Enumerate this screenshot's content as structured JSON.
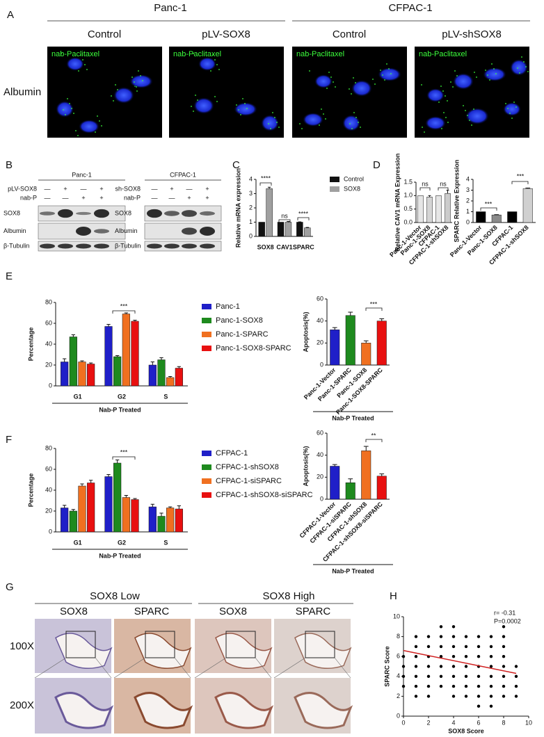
{
  "panel_labels": [
    "A",
    "B",
    "C",
    "D",
    "E",
    "F",
    "G",
    "H"
  ],
  "panel_a": {
    "groups": [
      "Panc-1",
      "CFPAC-1"
    ],
    "columns": [
      "Control",
      "pLV-SOX8",
      "Control",
      "pLV-shSOX8"
    ],
    "image_labels": [
      "nab-Paclitaxel",
      "nab-Paclitaxel",
      "nab-Paclitaxel",
      "nab-Paclitaxel"
    ],
    "row_label": "Albumin"
  },
  "panel_b": [
    {
      "title": "Panc-1",
      "conditions": [
        {
          "label": "pLV-SOX8",
          "signs": [
            "—",
            "+",
            "—",
            "+"
          ]
        },
        {
          "label": "nab-P",
          "signs": [
            "—",
            "—",
            "+",
            "+"
          ]
        }
      ],
      "rows": [
        "SOX8",
        "Albumin",
        "β-Tubulin"
      ]
    },
    {
      "title": "CFPAC-1",
      "conditions": [
        {
          "label": "sh-SOX8",
          "signs": [
            "—",
            "+",
            "—",
            "+"
          ]
        },
        {
          "label": "nab-P",
          "signs": [
            "—",
            "—",
            "+",
            "+"
          ]
        }
      ],
      "rows": [
        "SOX8",
        "Albumin",
        "β-Tubulin"
      ]
    }
  ],
  "panel_g": {
    "groups": [
      "SOX8 Low",
      "SOX8 High"
    ],
    "columns": [
      "SOX8",
      "SPARC",
      "SOX8",
      "SPARC"
    ],
    "rows": [
      "100X",
      "200X"
    ]
  },
  "chart_data": [
    {
      "type": "bar",
      "y_label": "Relative mRNA expression",
      "categories": [
        "SOX8",
        "CAV1",
        "SPARC"
      ],
      "series": [
        {
          "name": "Control",
          "color": "#111111",
          "values": [
            1,
            1,
            1
          ],
          "errors": [
            0,
            0,
            0.02
          ]
        },
        {
          "name": "SOX8",
          "color": "#a0a0a0",
          "values": [
            3.35,
            1.0,
            0.6
          ],
          "errors": [
            0.1,
            0.05,
            0.03
          ]
        }
      ],
      "ylim": [
        0,
        4
      ],
      "yticks": [
        0,
        1,
        2,
        3,
        4
      ],
      "annotations": [
        "****",
        "ns",
        "****"
      ]
    },
    {
      "type": "bar",
      "y_label": "Relative CAV1 mRNA Expression",
      "categories": [
        "Panc-1-Vector",
        "Panc-1-SOX8",
        "CFPAC-1",
        "CFPAC-1-shSOX8"
      ],
      "values": [
        1.0,
        0.95,
        1.0,
        1.08
      ],
      "errors": [
        0,
        0.05,
        0,
        0.12
      ],
      "colors": [
        "#e6e6e6",
        "#d4d4d4",
        "#e6e6e6",
        "#cccccc"
      ],
      "ylim": [
        0,
        1.5
      ],
      "yticks": [
        {
          "value": 0,
          "label": "0.0"
        },
        0.5,
        {
          "value": 1,
          "label": "1.0"
        },
        1.5
      ],
      "annotations": [
        "ns",
        "ns"
      ]
    },
    {
      "type": "bar",
      "y_label": "SPARC Relative Expression",
      "categories": [
        "Panc-1-Vector",
        "Panc-1-SOX8",
        "CFPAC-1",
        "CFPAC-1-shSOX8"
      ],
      "values": [
        1.0,
        0.7,
        1.0,
        3.15
      ],
      "errors": [
        0,
        0.03,
        0,
        0.05
      ],
      "colors": [
        "#000000",
        "#8a8a8a",
        "#000000",
        "#d0d0d0"
      ],
      "ylim": [
        0,
        4
      ],
      "yticks": [
        0,
        1,
        2,
        3,
        4
      ],
      "annotations": [
        "***",
        "***"
      ]
    },
    {
      "type": "bar",
      "y_label": "Percentage",
      "group_label": "Nab-P Treated",
      "categories": [
        "G1",
        "G2",
        "S"
      ],
      "series": [
        {
          "name": "Panc-1",
          "color": "#1f1fc8",
          "values": [
            23,
            57,
            20
          ],
          "errors": [
            3,
            2,
            3
          ]
        },
        {
          "name": "Panc-1-SOX8",
          "color": "#1e8a1e",
          "values": [
            47,
            28,
            25
          ],
          "errors": [
            2,
            1,
            2
          ]
        },
        {
          "name": "Panc-1-SPARC",
          "color": "#f07020",
          "values": [
            23,
            69,
            8
          ],
          "errors": [
            1,
            1,
            1
          ]
        },
        {
          "name": "Panc-1-SOX8-SPARC",
          "color": "#e81010",
          "values": [
            21,
            62,
            17
          ],
          "errors": [
            1,
            1,
            1.5
          ]
        }
      ],
      "ylim": [
        0,
        80
      ],
      "yticks": [
        0,
        20,
        40,
        60,
        80
      ],
      "annotations": [
        "***"
      ]
    },
    {
      "type": "bar",
      "y_label": "Apoptosis(%)",
      "group_label": "Nab-P Treated",
      "categories": [
        "Panc-1-Vector",
        "Panc-1-SPARC",
        "Panc-1-SOX8",
        "Panc-1-SOX8-SPARC"
      ],
      "values": [
        32,
        45,
        20,
        40
      ],
      "errors": [
        2,
        3,
        2,
        2
      ],
      "colors": [
        "#1f1fc8",
        "#1e8a1e",
        "#f07020",
        "#e81010"
      ],
      "ylim": [
        0,
        60
      ],
      "yticks": [
        0,
        20,
        40,
        60
      ],
      "annotations": [
        "***"
      ]
    },
    {
      "type": "bar",
      "y_label": "Percentage",
      "group_label": "Nab-P Treated",
      "categories": [
        "G1",
        "G2",
        "S"
      ],
      "series": [
        {
          "name": "CFPAC-1",
          "color": "#1f1fc8",
          "values": [
            23,
            53,
            24
          ],
          "errors": [
            2.5,
            2,
            2.5
          ]
        },
        {
          "name": "CFPAC-1-shSOX8",
          "color": "#1e8a1e",
          "values": [
            20,
            66,
            15
          ],
          "errors": [
            1.5,
            3,
            3
          ]
        },
        {
          "name": "CFPAC-1-siSPARC",
          "color": "#f07020",
          "values": [
            44,
            33,
            23
          ],
          "errors": [
            2,
            2,
            1
          ]
        },
        {
          "name": "CFPAC-1-shSOX8-siSPARC",
          "color": "#e81010",
          "values": [
            47,
            31,
            22
          ],
          "errors": [
            2.5,
            1,
            3
          ]
        }
      ],
      "ylim": [
        0,
        80
      ],
      "yticks": [
        0,
        20,
        40,
        60,
        80
      ],
      "annotations": [
        "***"
      ]
    },
    {
      "type": "bar",
      "y_label": "Apoptosis(%)",
      "group_label": "Nab-P Treated",
      "categories": [
        "CFPAC-1-Vector",
        "CFPAC-1-siSPARC",
        "CFPAC-1-shSOX8",
        "CFPAC-1-shSOX8-siSPARC"
      ],
      "values": [
        30,
        15,
        44,
        21
      ],
      "errors": [
        1.5,
        3.5,
        4,
        2
      ],
      "colors": [
        "#1f1fc8",
        "#1e8a1e",
        "#f07020",
        "#e81010"
      ],
      "ylim": [
        0,
        60
      ],
      "yticks": [
        0,
        20,
        40,
        60
      ],
      "annotations": [
        "**"
      ]
    },
    {
      "type": "scatter",
      "x_label": "SOX8 Score",
      "y_label": "SPARC Score",
      "annotations": [
        "r= -0.31",
        "P=0.0002"
      ],
      "color": "#000000",
      "x": [
        0,
        0,
        0,
        0,
        1,
        1,
        1,
        1,
        1,
        1,
        1,
        2,
        2,
        2,
        2,
        2,
        2,
        2,
        3,
        3,
        3,
        3,
        3,
        3,
        3,
        4,
        4,
        4,
        4,
        4,
        4,
        4,
        4,
        5,
        5,
        5,
        5,
        5,
        5,
        5,
        6,
        6,
        6,
        6,
        6,
        6,
        6,
        6,
        7,
        7,
        7,
        7,
        7,
        7,
        7,
        7,
        8,
        8,
        8,
        8,
        8,
        8,
        8,
        8,
        9,
        9,
        9,
        9
      ],
      "y": [
        3,
        4,
        5,
        6,
        2,
        3,
        4,
        5,
        6,
        7,
        8,
        2,
        3,
        4,
        5,
        6,
        7,
        8,
        3,
        4,
        5,
        6,
        7,
        8,
        9,
        2,
        3,
        4,
        5,
        6,
        7,
        8,
        9,
        2,
        3,
        4,
        5,
        6,
        7,
        8,
        1,
        2,
        3,
        4,
        5,
        6,
        7,
        8,
        1,
        2,
        3,
        4,
        5,
        6,
        7,
        8,
        2,
        3,
        4,
        5,
        6,
        7,
        8,
        9,
        2,
        3,
        4,
        5
      ],
      "trend_line": {
        "x": [
          0,
          9
        ],
        "y": [
          6.6,
          4.3
        ],
        "color": "#d02020"
      },
      "xlim": [
        0,
        10
      ],
      "ylim": [
        0,
        10
      ],
      "xticks": [
        0,
        2,
        4,
        6,
        8,
        10
      ],
      "yticks": [
        0,
        2,
        4,
        6,
        8,
        10
      ]
    }
  ]
}
